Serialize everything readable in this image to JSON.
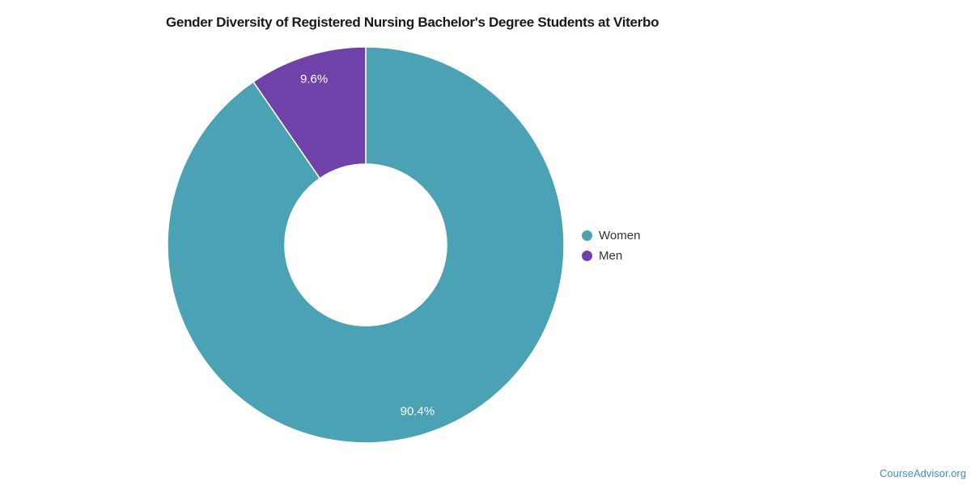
{
  "title": "Gender Diversity of Registered Nursing Bachelor's Degree Students at Viterbo",
  "footer": {
    "brand": "CourseAdvisor.org"
  },
  "chart_data": {
    "type": "pie",
    "subtype": "donut",
    "title": "Gender Diversity of Registered Nursing Bachelor's Degree Students at Viterbo",
    "slices": [
      {
        "label": "Women",
        "value": 90.4,
        "display": "90.4%",
        "color": "#4aa2b4"
      },
      {
        "label": "Men",
        "value": 9.6,
        "display": "9.6%",
        "color": "#6e42a8"
      }
    ],
    "start_angle_deg": 0,
    "direction": "clockwise",
    "inner_radius_ratio": 0.41,
    "data_label_color": "#ffffff",
    "legend_position": "right",
    "legend_entries": [
      "Women",
      "Men"
    ],
    "separator_color": "#ffffff"
  }
}
